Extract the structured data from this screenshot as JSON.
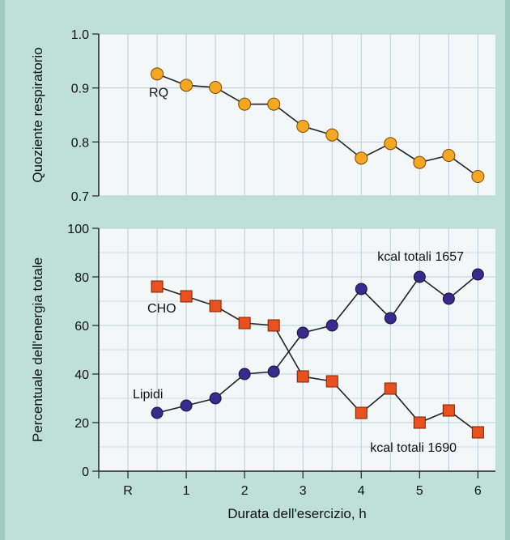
{
  "chart_data": [
    {
      "type": "line",
      "ylabel": "Quoziente respiratorio",
      "xlabel": "",
      "ylim": [
        0.7,
        1.0
      ],
      "y_ticks": [
        "1.0",
        "0.9",
        "0.8",
        "0.7"
      ],
      "grid": true,
      "series": [
        {
          "name": "RQ",
          "color": "#f5a623",
          "x": [
            0.5,
            1.0,
            1.5,
            2.0,
            2.5,
            3.0,
            3.5,
            4.0,
            4.5,
            5.0,
            5.5,
            6.0
          ],
          "values": [
            0.926,
            0.905,
            0.901,
            0.87,
            0.87,
            0.829,
            0.813,
            0.77,
            0.797,
            0.762,
            0.775,
            0.736
          ]
        }
      ]
    },
    {
      "type": "line",
      "ylabel": "Percentuale dell'energia totale",
      "xlabel": "Durata dell'esercizio, h",
      "ylim": [
        0,
        100
      ],
      "xlim": [
        -0.5,
        6
      ],
      "x_ticks": [
        "R",
        "1",
        "2",
        "3",
        "4",
        "5",
        "6"
      ],
      "y_ticks": [
        "0",
        "20",
        "40",
        "60",
        "80",
        "100"
      ],
      "grid": true,
      "series": [
        {
          "name": "CHO",
          "color": "#e8501e",
          "marker": "square",
          "x": [
            0.5,
            1.0,
            1.5,
            2.0,
            2.5,
            3.0,
            3.5,
            4.0,
            4.5,
            5.0,
            5.5,
            6.0
          ],
          "values": [
            76,
            72,
            68,
            61,
            60,
            39,
            37,
            24,
            34,
            20,
            25,
            16
          ]
        },
        {
          "name": "Lipidi",
          "color": "#3a2a8c",
          "marker": "circle",
          "x": [
            0.5,
            1.0,
            1.5,
            2.0,
            2.5,
            3.0,
            3.5,
            4.0,
            4.5,
            5.0,
            5.5,
            6.0
          ],
          "values": [
            24,
            27,
            30,
            40,
            41,
            57,
            60,
            75,
            63,
            80,
            71,
            81
          ]
        }
      ],
      "annotations": [
        "kcal totali 1657",
        "kcal totali 1690"
      ]
    }
  ]
}
